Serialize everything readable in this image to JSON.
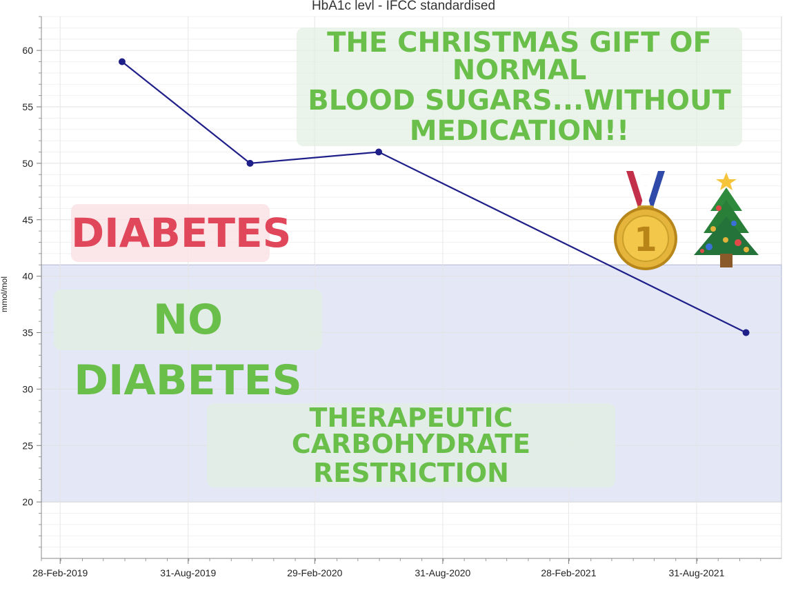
{
  "chart_data": {
    "type": "line",
    "title": "HbA1c levl - IFCC standardised",
    "ylabel": "mmol/mol",
    "xlabel": "",
    "x_tick_labels": [
      "28-Feb-2019",
      "31-Aug-2019",
      "29-Feb-2020",
      "31-Aug-2020",
      "28-Feb-2021",
      "31-Aug-2021"
    ],
    "x_tick_dates": [
      "2019-02-28",
      "2019-08-31",
      "2020-02-29",
      "2020-08-31",
      "2021-02-28",
      "2021-08-31"
    ],
    "y_ticks": [
      20,
      25,
      30,
      35,
      40,
      45,
      50,
      55,
      60
    ],
    "ylim": [
      15,
      63
    ],
    "xlim": [
      "2019-02-01",
      "2021-12-31"
    ],
    "grid": true,
    "series": [
      {
        "color": "#1f1f8a",
        "points": [
          {
            "x": "2019-05-28",
            "y": 59
          },
          {
            "x": "2019-11-28",
            "y": 50
          },
          {
            "x": "2020-05-31",
            "y": 51
          },
          {
            "x": "2021-11-10",
            "y": 35
          }
        ]
      }
    ],
    "shaded_band": {
      "y_from": 20,
      "y_to": 41,
      "color": "#e3e7f6"
    }
  },
  "annotations": {
    "gift_lines": [
      "THE CHRISTMAS GIFT OF NORMAL",
      "BLOOD SUGARS...WITHOUT",
      "MEDICATION!!"
    ],
    "diabetes": "DIABETES",
    "no_diabetes": "NO DIABETES",
    "therapy_lines": [
      "THERAPEUTIC CARBOHYDRATE",
      "RESTRICTION"
    ]
  },
  "icons": {
    "medal": "first-place-medal-icon",
    "tree": "christmas-tree-icon"
  },
  "colors": {
    "green_text": "#6abf4b",
    "red_text": "#e0475a",
    "line": "#1f1f8a"
  }
}
